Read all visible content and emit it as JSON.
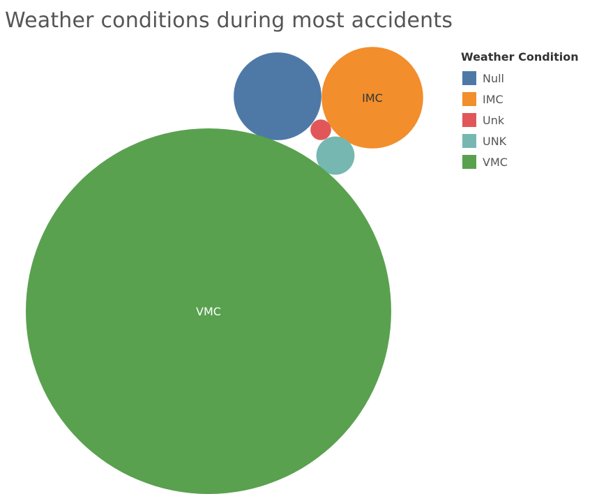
{
  "chart_data": {
    "type": "bubble",
    "title": "Weather conditions during most accidents",
    "legend": {
      "title": "Weather Condition",
      "placement": "top-right"
    },
    "series": [
      {
        "name": "Null",
        "value": 1270,
        "color": "#4e79a7",
        "label": ""
      },
      {
        "name": "IMC",
        "value": 1700,
        "color": "#f28e2b",
        "label": "IMC"
      },
      {
        "name": "Unk",
        "value": 70,
        "color": "#e15759",
        "label": ""
      },
      {
        "name": "UNK",
        "value": 240,
        "color": "#76b7b2",
        "label": ""
      },
      {
        "name": "VMC",
        "value": 22000,
        "color": "#59a14f",
        "label": "VMC"
      }
    ]
  }
}
